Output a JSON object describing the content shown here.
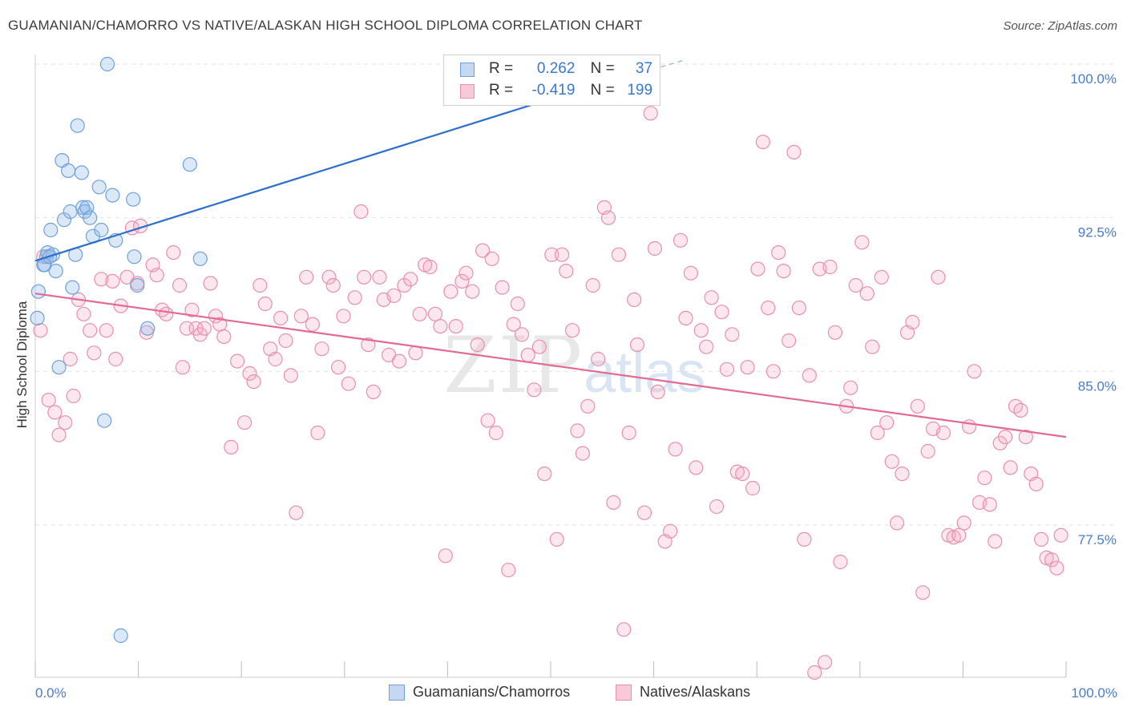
{
  "title": "GUAMANIAN/CHAMORRO VS NATIVE/ALASKAN HIGH SCHOOL DIPLOMA CORRELATION CHART",
  "source": "Source: ZipAtlas.com",
  "watermark": {
    "main": "ZIP",
    "sub": "atlas"
  },
  "legend": {
    "row1": {
      "r_label": "R =",
      "r_value": "0.262",
      "n_label": "N =",
      "n_value": "37"
    },
    "row2": {
      "r_label": "R =",
      "r_value": "-0.419",
      "n_label": "N =",
      "n_value": "199"
    }
  },
  "bottom_legend": {
    "series1": "Guamanians/Chamorros",
    "series2": "Natives/Alaskans"
  },
  "chart_data": {
    "type": "scatter",
    "title": "GUAMANIAN/CHAMORRO VS NATIVE/ALASKAN HIGH SCHOOL DIPLOMA CORRELATION CHART",
    "xlabel": "",
    "ylabel": "High School Diploma",
    "xlim": [
      0,
      100
    ],
    "ylim": [
      70.5,
      100.5
    ],
    "x_tick_labels": [
      "0.0%",
      "100.0%"
    ],
    "y_ticks": [
      77.5,
      85.0,
      92.5,
      100.0
    ],
    "y_tick_labels": [
      "77.5%",
      "85.0%",
      "92.5%",
      "100.0%"
    ],
    "grid": true,
    "colors": {
      "blue": "#6fa0dc",
      "blue_line": "#2d6fcc",
      "pink": "#e890ab",
      "pink_line": "#e26a94",
      "tick_label": "#4a7cc7"
    },
    "series": [
      {
        "name": "Guamanians/Chamorros",
        "color": "#6fa0dc",
        "trend": {
          "x": [
            0,
            50
          ],
          "y": [
            90.4,
            98.3
          ],
          "dashed_to": [
            63,
            100.2
          ]
        },
        "points": [
          [
            0.2,
            87.6
          ],
          [
            0.3,
            88.9
          ],
          [
            0.8,
            90.2
          ],
          [
            1.1,
            90.6
          ],
          [
            1.2,
            90.8
          ],
          [
            1.5,
            91.9
          ],
          [
            1.7,
            90.7
          ],
          [
            2.0,
            89.9
          ],
          [
            2.3,
            85.2
          ],
          [
            2.6,
            95.3
          ],
          [
            2.8,
            92.4
          ],
          [
            3.2,
            94.8
          ],
          [
            3.4,
            92.8
          ],
          [
            3.6,
            89.1
          ],
          [
            3.9,
            90.7
          ],
          [
            4.1,
            97.0
          ],
          [
            4.5,
            94.7
          ],
          [
            4.6,
            93.0
          ],
          [
            4.8,
            92.8
          ],
          [
            5.0,
            93.0
          ],
          [
            5.3,
            92.5
          ],
          [
            5.6,
            91.6
          ],
          [
            6.2,
            94.0
          ],
          [
            6.4,
            91.9
          ],
          [
            6.7,
            82.6
          ],
          [
            7.0,
            100.0
          ],
          [
            7.5,
            93.6
          ],
          [
            7.8,
            91.4
          ],
          [
            8.3,
            72.1
          ],
          [
            9.5,
            93.4
          ],
          [
            9.6,
            90.6
          ],
          [
            9.9,
            89.2
          ],
          [
            10.9,
            87.1
          ],
          [
            15.0,
            95.1
          ],
          [
            16.0,
            90.5
          ],
          [
            0.9,
            90.2
          ],
          [
            1.4,
            90.6
          ]
        ]
      },
      {
        "name": "Natives/Alaskans",
        "color": "#e890ab",
        "trend": {
          "x": [
            0,
            100
          ],
          "y": [
            88.8,
            81.8
          ]
        },
        "points": [
          [
            0.5,
            87.0
          ],
          [
            0.8,
            90.6
          ],
          [
            1.3,
            83.6
          ],
          [
            1.9,
            83.0
          ],
          [
            2.3,
            81.9
          ],
          [
            2.9,
            82.5
          ],
          [
            3.4,
            85.6
          ],
          [
            3.7,
            83.8
          ],
          [
            4.2,
            88.5
          ],
          [
            4.7,
            87.8
          ],
          [
            5.3,
            87.0
          ],
          [
            5.7,
            85.9
          ],
          [
            6.4,
            89.5
          ],
          [
            6.9,
            87.0
          ],
          [
            7.5,
            89.4
          ],
          [
            7.8,
            85.6
          ],
          [
            8.3,
            88.2
          ],
          [
            8.9,
            89.6
          ],
          [
            9.4,
            92.0
          ],
          [
            9.9,
            89.3
          ],
          [
            10.2,
            92.1
          ],
          [
            10.8,
            86.9
          ],
          [
            11.4,
            90.2
          ],
          [
            11.8,
            89.7
          ],
          [
            12.3,
            88.0
          ],
          [
            12.7,
            87.8
          ],
          [
            13.4,
            90.8
          ],
          [
            14.0,
            89.2
          ],
          [
            14.3,
            85.2
          ],
          [
            14.7,
            87.1
          ],
          [
            15.2,
            88.0
          ],
          [
            15.6,
            87.1
          ],
          [
            16.0,
            86.8
          ],
          [
            16.4,
            87.1
          ],
          [
            17.0,
            89.3
          ],
          [
            17.5,
            87.7
          ],
          [
            17.9,
            87.3
          ],
          [
            18.3,
            86.7
          ],
          [
            19.0,
            81.3
          ],
          [
            19.6,
            85.5
          ],
          [
            20.3,
            82.5
          ],
          [
            20.8,
            84.9
          ],
          [
            21.2,
            84.5
          ],
          [
            21.8,
            89.2
          ],
          [
            22.3,
            88.3
          ],
          [
            22.8,
            86.1
          ],
          [
            23.3,
            85.6
          ],
          [
            23.8,
            87.6
          ],
          [
            24.3,
            86.5
          ],
          [
            24.8,
            84.8
          ],
          [
            25.3,
            78.1
          ],
          [
            25.8,
            87.7
          ],
          [
            26.3,
            89.6
          ],
          [
            26.9,
            87.3
          ],
          [
            27.4,
            82.0
          ],
          [
            27.8,
            86.1
          ],
          [
            28.5,
            89.6
          ],
          [
            28.9,
            89.2
          ],
          [
            29.4,
            85.2
          ],
          [
            29.9,
            87.7
          ],
          [
            30.4,
            84.4
          ],
          [
            31.0,
            88.6
          ],
          [
            31.6,
            92.8
          ],
          [
            31.9,
            89.6
          ],
          [
            32.3,
            86.3
          ],
          [
            32.8,
            84.0
          ],
          [
            33.4,
            89.6
          ],
          [
            33.8,
            88.5
          ],
          [
            34.3,
            85.8
          ],
          [
            34.8,
            88.7
          ],
          [
            35.3,
            85.5
          ],
          [
            35.8,
            89.2
          ],
          [
            36.4,
            89.5
          ],
          [
            36.9,
            85.9
          ],
          [
            37.3,
            87.8
          ],
          [
            37.8,
            90.2
          ],
          [
            38.3,
            90.1
          ],
          [
            38.8,
            87.8
          ],
          [
            39.3,
            87.2
          ],
          [
            39.8,
            76.0
          ],
          [
            40.3,
            88.9
          ],
          [
            40.8,
            87.2
          ],
          [
            41.4,
            89.4
          ],
          [
            41.8,
            89.8
          ],
          [
            42.4,
            88.9
          ],
          [
            42.9,
            86.3
          ],
          [
            43.4,
            90.9
          ],
          [
            43.9,
            82.6
          ],
          [
            44.3,
            90.5
          ],
          [
            44.7,
            82.0
          ],
          [
            45.3,
            89.1
          ],
          [
            45.9,
            75.3
          ],
          [
            46.4,
            87.3
          ],
          [
            46.8,
            88.3
          ],
          [
            47.2,
            86.8
          ],
          [
            47.8,
            85.8
          ],
          [
            48.4,
            84.1
          ],
          [
            48.9,
            86.2
          ],
          [
            49.4,
            80.0
          ],
          [
            50.1,
            90.7
          ],
          [
            50.6,
            76.8
          ],
          [
            51.1,
            90.7
          ],
          [
            51.5,
            89.9
          ],
          [
            52.1,
            87.0
          ],
          [
            52.6,
            82.1
          ],
          [
            53.1,
            81.0
          ],
          [
            53.6,
            83.3
          ],
          [
            54.1,
            89.2
          ],
          [
            54.6,
            85.6
          ],
          [
            55.2,
            93.0
          ],
          [
            55.6,
            92.5
          ],
          [
            56.1,
            78.6
          ],
          [
            56.6,
            90.7
          ],
          [
            57.1,
            72.4
          ],
          [
            57.6,
            82.0
          ],
          [
            58.1,
            88.5
          ],
          [
            58.4,
            86.3
          ],
          [
            59.1,
            78.1
          ],
          [
            59.7,
            97.6
          ],
          [
            60.1,
            91.0
          ],
          [
            60.4,
            84.0
          ],
          [
            61.1,
            76.7
          ],
          [
            61.6,
            77.2
          ],
          [
            62.1,
            81.2
          ],
          [
            62.6,
            91.4
          ],
          [
            63.1,
            87.6
          ],
          [
            63.6,
            89.8
          ],
          [
            64.1,
            80.3
          ],
          [
            64.6,
            87.0
          ],
          [
            65.1,
            86.2
          ],
          [
            65.6,
            88.6
          ],
          [
            66.1,
            78.4
          ],
          [
            66.6,
            87.9
          ],
          [
            67.1,
            85.1
          ],
          [
            67.6,
            86.8
          ],
          [
            68.1,
            80.1
          ],
          [
            68.6,
            80.0
          ],
          [
            69.1,
            85.2
          ],
          [
            69.6,
            79.3
          ],
          [
            70.1,
            90.0
          ],
          [
            70.6,
            96.2
          ],
          [
            71.1,
            88.1
          ],
          [
            71.6,
            85.0
          ],
          [
            72.1,
            90.8
          ],
          [
            72.6,
            89.9
          ],
          [
            73.1,
            86.5
          ],
          [
            73.6,
            95.7
          ],
          [
            74.1,
            88.1
          ],
          [
            74.6,
            76.8
          ],
          [
            75.1,
            84.8
          ],
          [
            75.6,
            70.3
          ],
          [
            76.1,
            90.0
          ],
          [
            76.6,
            70.8
          ],
          [
            77.1,
            90.1
          ],
          [
            77.6,
            86.9
          ],
          [
            78.1,
            75.7
          ],
          [
            78.7,
            83.3
          ],
          [
            79.1,
            84.2
          ],
          [
            79.6,
            89.2
          ],
          [
            80.2,
            91.3
          ],
          [
            80.7,
            88.8
          ],
          [
            81.2,
            86.2
          ],
          [
            81.7,
            82.0
          ],
          [
            82.1,
            89.6
          ],
          [
            82.6,
            82.5
          ],
          [
            83.1,
            80.6
          ],
          [
            83.6,
            77.6
          ],
          [
            84.1,
            80.0
          ],
          [
            84.6,
            86.9
          ],
          [
            85.1,
            87.4
          ],
          [
            85.6,
            83.3
          ],
          [
            86.1,
            74.2
          ],
          [
            86.6,
            81.1
          ],
          [
            87.1,
            82.2
          ],
          [
            87.6,
            89.6
          ],
          [
            88.1,
            82.0
          ],
          [
            88.6,
            77.0
          ],
          [
            89.1,
            76.9
          ],
          [
            89.6,
            77.0
          ],
          [
            90.1,
            77.6
          ],
          [
            90.6,
            82.3
          ],
          [
            91.1,
            85.0
          ],
          [
            91.6,
            78.6
          ],
          [
            92.1,
            79.8
          ],
          [
            92.6,
            78.5
          ],
          [
            93.1,
            76.7
          ],
          [
            93.6,
            81.5
          ],
          [
            94.1,
            81.8
          ],
          [
            94.6,
            80.3
          ],
          [
            95.1,
            83.3
          ],
          [
            95.6,
            83.1
          ],
          [
            96.1,
            81.8
          ],
          [
            96.6,
            80.0
          ],
          [
            97.1,
            79.5
          ],
          [
            97.6,
            76.8
          ],
          [
            98.1,
            75.9
          ],
          [
            98.6,
            75.8
          ],
          [
            99.1,
            75.4
          ],
          [
            99.5,
            77.0
          ]
        ]
      }
    ]
  }
}
